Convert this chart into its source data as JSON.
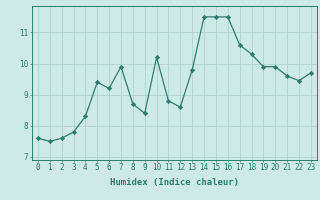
{
  "x": [
    0,
    1,
    2,
    3,
    4,
    5,
    6,
    7,
    8,
    9,
    10,
    11,
    12,
    13,
    14,
    15,
    16,
    17,
    18,
    19,
    20,
    21,
    22,
    23
  ],
  "y": [
    7.6,
    7.5,
    7.6,
    7.8,
    8.3,
    9.4,
    9.2,
    9.9,
    8.7,
    8.4,
    10.2,
    8.8,
    8.6,
    9.8,
    11.5,
    11.5,
    11.5,
    10.6,
    10.3,
    9.9,
    9.9,
    9.6,
    9.45,
    9.7
  ],
  "xlabel": "Humidex (Indice chaleur)",
  "ylabel": "",
  "xlim": [
    -0.5,
    23.5
  ],
  "ylim": [
    6.9,
    11.85
  ],
  "yticks": [
    7,
    8,
    9,
    10,
    11
  ],
  "xticks": [
    0,
    1,
    2,
    3,
    4,
    5,
    6,
    7,
    8,
    9,
    10,
    11,
    12,
    13,
    14,
    15,
    16,
    17,
    18,
    19,
    20,
    21,
    22,
    23
  ],
  "line_color": "#2e7d6e",
  "marker": "D",
  "marker_size": 2.2,
  "bg_color": "#cdeae6",
  "grid_color": "#b0d4cf",
  "axes_color": "#2e7d6e",
  "tick_fontsize": 5.5,
  "label_fontsize": 6.5
}
